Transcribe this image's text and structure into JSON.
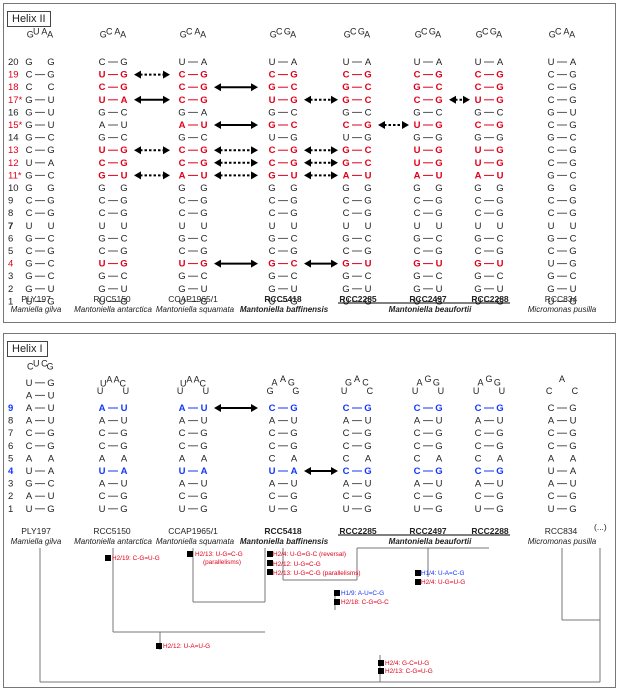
{
  "helix2": {
    "title": "Helix II",
    "row_numbers": [
      "20",
      "19",
      "18",
      "17*",
      "16",
      "15*",
      "14",
      "13",
      "12",
      "11*",
      "10",
      "9",
      "8",
      "7",
      "6",
      "5",
      "4",
      "3",
      "2",
      "1"
    ],
    "row_colors": [
      "n",
      "r",
      "r",
      "r",
      "n",
      "r",
      "n",
      "r",
      "r",
      "r",
      "n",
      "n",
      "n",
      "b",
      "n",
      "n",
      "r",
      "n",
      "n",
      "n"
    ],
    "loops": [
      "GUAA",
      "GCAA",
      "GCAA",
      "GCGA",
      "GCGA",
      "GCGA",
      "GCGA",
      "GCAA"
    ],
    "columns": [
      [
        "G G",
        "C G",
        "C C",
        "G U",
        "G U",
        "G U",
        "G C",
        "C G",
        "U A",
        "G C",
        "G G",
        "C G",
        "C G",
        "U U",
        "G C",
        "C G",
        "G C",
        "G C",
        "G U",
        "U G"
      ],
      [
        "C G",
        "U G",
        "C G",
        "U A",
        "G C",
        "A U",
        "G C",
        "U G",
        "C G",
        "G U",
        "G G",
        "C G",
        "C G",
        "U U",
        "G C",
        "C G",
        "U G",
        "G C",
        "G U",
        "U G"
      ],
      [
        "U A",
        "C G",
        "C G",
        "C G",
        "G A",
        "A U",
        "G C",
        "C G",
        "C G",
        "A U",
        "G G",
        "C G",
        "C G",
        "U U",
        "G C",
        "C G",
        "U G",
        "G C",
        "G U",
        "U G"
      ],
      [
        "U A",
        "C G",
        "G C",
        "U G",
        "G C",
        "G C",
        "U G",
        "C G",
        "C G",
        "G U",
        "G G",
        "C G",
        "C G",
        "U U",
        "G C",
        "C G",
        "G C",
        "G C",
        "G U",
        "U G"
      ],
      [
        "U A",
        "C G",
        "G C",
        "G C",
        "G C",
        "C G",
        "U G",
        "G C",
        "G C",
        "A U",
        "G G",
        "C G",
        "C G",
        "U U",
        "G C",
        "C G",
        "G U",
        "G C",
        "G U",
        "U G"
      ],
      [
        "U A",
        "C G",
        "G C",
        "C G",
        "G C",
        "U G",
        "G G",
        "U G",
        "U G",
        "A U",
        "G G",
        "C G",
        "C G",
        "U U",
        "G C",
        "C G",
        "G U",
        "G C",
        "G U",
        "U G"
      ],
      [
        "U A",
        "C G",
        "C G",
        "U G",
        "G C",
        "C G",
        "G G",
        "U G",
        "U G",
        "A U",
        "G G",
        "C G",
        "C G",
        "U U",
        "G C",
        "C G",
        "G U",
        "G C",
        "G U",
        "U G"
      ],
      [
        "U A",
        "C G",
        "C G",
        "C G",
        "G U",
        "C G",
        "G C",
        "C G",
        "C G",
        "G C",
        "G G",
        "C G",
        "C G",
        "U U",
        "G C",
        "C G",
        "U G",
        "G C",
        "G U",
        "U G"
      ]
    ],
    "red_cells": [
      [
        1,
        1
      ],
      [
        1,
        2
      ],
      [
        1,
        3
      ],
      [
        1,
        7
      ],
      [
        1,
        8
      ],
      [
        1,
        9
      ],
      [
        1,
        16
      ],
      [
        2,
        1
      ],
      [
        2,
        2
      ],
      [
        2,
        3
      ],
      [
        2,
        5
      ],
      [
        2,
        7
      ],
      [
        2,
        8
      ],
      [
        2,
        9
      ],
      [
        2,
        16
      ],
      [
        3,
        1
      ],
      [
        3,
        2
      ],
      [
        3,
        3
      ],
      [
        3,
        5
      ],
      [
        3,
        7
      ],
      [
        3,
        8
      ],
      [
        3,
        9
      ],
      [
        3,
        16
      ],
      [
        4,
        1
      ],
      [
        4,
        2
      ],
      [
        4,
        3
      ],
      [
        4,
        5
      ],
      [
        4,
        7
      ],
      [
        4,
        8
      ],
      [
        4,
        9
      ],
      [
        4,
        16
      ],
      [
        5,
        1
      ],
      [
        5,
        2
      ],
      [
        5,
        3
      ],
      [
        5,
        5
      ],
      [
        5,
        7
      ],
      [
        5,
        8
      ],
      [
        5,
        9
      ],
      [
        5,
        16
      ],
      [
        6,
        1
      ],
      [
        6,
        2
      ],
      [
        6,
        3
      ],
      [
        6,
        5
      ],
      [
        6,
        7
      ],
      [
        6,
        8
      ],
      [
        6,
        9
      ],
      [
        6,
        16
      ]
    ],
    "strains": [
      "PLY197",
      "RCC5150",
      "CCAP1965/1",
      "RCC5418",
      "RCC2285",
      "RCC2497",
      "RCC2288",
      "RCC834"
    ],
    "species": [
      "Mamiella gilva",
      "Mantoniella antarctica",
      "Mantoniella squamata",
      "Mantoniella baffinensis",
      "Mantoniella beaufortii",
      "Micromonas pusilla"
    ]
  },
  "helix1": {
    "title": "Helix I",
    "row_numbers": [
      "9",
      "8",
      "7",
      "6",
      "5",
      "4",
      "3",
      "2",
      "1"
    ],
    "row_colors": [
      "b",
      "n",
      "n",
      "n",
      "n",
      "b",
      "n",
      "n",
      "n"
    ],
    "ply_loop": "CUCG",
    "ply_top": [
      "U G",
      "A U"
    ],
    "loops": [
      "UUAACU",
      "UUAACU",
      "GAAGG",
      "UGACC",
      "UAGGU",
      "UAGGU",
      "CAC"
    ],
    "columns": [
      [
        "A U",
        "A U",
        "C G",
        "C G",
        "A A",
        "U A",
        "G C",
        "A U",
        "U G"
      ],
      [
        "A U",
        "A U",
        "C G",
        "C G",
        "A A",
        "U A",
        "A U",
        "C G",
        "U G"
      ],
      [
        "A U",
        "A U",
        "C G",
        "C G",
        "A A",
        "U A",
        "A U",
        "C G",
        "U G"
      ],
      [
        "C G",
        "A U",
        "C G",
        "C G",
        "C A",
        "U A",
        "A U",
        "C G",
        "U G"
      ],
      [
        "C G",
        "A U",
        "C G",
        "C G",
        "C A",
        "C G",
        "A U",
        "C G",
        "U G"
      ],
      [
        "C G",
        "A U",
        "C G",
        "C G",
        "C A",
        "C G",
        "A U",
        "C G",
        "U G"
      ],
      [
        "C G",
        "A U",
        "C G",
        "C G",
        "C A",
        "C G",
        "A U",
        "C G",
        "U G"
      ],
      [
        "C G",
        "A U",
        "C G",
        "C G",
        "A A",
        "U A",
        "A U",
        "C G",
        "U G"
      ]
    ],
    "blue_cells": [
      [
        1,
        0
      ],
      [
        1,
        5
      ],
      [
        2,
        0
      ],
      [
        2,
        5
      ],
      [
        3,
        0
      ],
      [
        3,
        5
      ],
      [
        4,
        0
      ],
      [
        4,
        5
      ],
      [
        5,
        0
      ],
      [
        5,
        5
      ],
      [
        6,
        0
      ],
      [
        6,
        5
      ]
    ],
    "ellipsis": "(...)",
    "annotations": [
      {
        "text": "H2/19: C-G=U-G",
        "color": "red"
      },
      {
        "text": "H2/13: U-G=C-G",
        "color": "red"
      },
      {
        "text": "(parallelisms)",
        "color": "red"
      },
      {
        "text": "H2/4: U-G=G-C (reversal)",
        "color": "red"
      },
      {
        "text": "H2/12: U-G=C-G",
        "color": "red"
      },
      {
        "text": "H2/13: U-G=C-G (parallelisms)",
        "color": "red"
      },
      {
        "text": "H1/4: U-A=C-G",
        "color": "blue"
      },
      {
        "text": "H2/4: U-G=U-G",
        "color": "red"
      },
      {
        "text": "H1/9: A-U=C-G",
        "color": "blue"
      },
      {
        "text": "H2/18: C-G=G-C",
        "color": "red"
      },
      {
        "text": "H2/12: U-A=U-G",
        "color": "red"
      },
      {
        "text": "H2/4: G-C=U-G",
        "color": "red"
      },
      {
        "text": "H2/13: C-G=U-G",
        "color": "red"
      }
    ]
  }
}
